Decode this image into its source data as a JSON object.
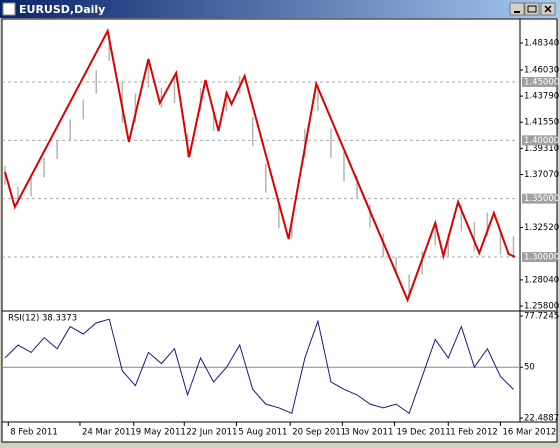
{
  "window": {
    "title": "EURUSD,Daily"
  },
  "chart_data": [
    {
      "type": "line",
      "x": [
        0,
        6,
        63,
        76,
        88,
        95,
        105,
        113,
        123,
        131,
        136,
        139,
        147,
        174,
        191,
        247,
        264,
        269,
        278,
        291,
        300,
        309,
        313
      ],
      "values": [
        1.3729,
        1.3429,
        1.4937,
        1.3986,
        1.4697,
        1.432,
        1.4577,
        1.3857,
        1.4517,
        1.408,
        1.4406,
        1.4311,
        1.4551,
        1.3154,
        1.4483,
        1.2632,
        1.3292,
        1.3009,
        1.3472,
        1.3034,
        1.3377,
        1.3026,
        1.3
      ],
      "color": "#dd0000",
      "bars": {
        "color": "#b4b4b4",
        "x": [
          0,
          8,
          16,
          24,
          32,
          40,
          48,
          56,
          64,
          72,
          80,
          88,
          96,
          104,
          112,
          120,
          128,
          136,
          144,
          152,
          160,
          168,
          176,
          184,
          192,
          200,
          208,
          216,
          224,
          232,
          240,
          248,
          256,
          264,
          272,
          280,
          288,
          296,
          304,
          312
        ],
        "high": [
          1.378,
          1.36,
          1.368,
          1.385,
          1.4,
          1.418,
          1.435,
          1.46,
          1.49,
          1.45,
          1.44,
          1.468,
          1.445,
          1.455,
          1.405,
          1.445,
          1.425,
          1.442,
          1.455,
          1.42,
          1.38,
          1.345,
          1.33,
          1.41,
          1.448,
          1.41,
          1.39,
          1.37,
          1.345,
          1.32,
          1.3,
          1.285,
          1.305,
          1.33,
          1.32,
          1.345,
          1.33,
          1.338,
          1.322,
          1.318
        ],
        "low": [
          1.362,
          1.345,
          1.352,
          1.368,
          1.384,
          1.4,
          1.418,
          1.44,
          1.468,
          1.415,
          1.415,
          1.445,
          1.428,
          1.432,
          1.385,
          1.425,
          1.408,
          1.425,
          1.44,
          1.395,
          1.355,
          1.325,
          1.316,
          1.385,
          1.425,
          1.385,
          1.365,
          1.35,
          1.325,
          1.3,
          1.285,
          1.265,
          1.285,
          1.31,
          1.3,
          1.322,
          1.305,
          1.318,
          1.302,
          1.3
        ]
      },
      "xlim": [
        0,
        316
      ],
      "ylim": [
        1.2546,
        1.5031
      ],
      "yticks": [
        {
          "value": 1.4834,
          "label": "1.48340"
        },
        {
          "value": 1.4603,
          "label": "1.46030"
        },
        {
          "value": 1.4379,
          "label": "1.43790"
        },
        {
          "value": 1.4155,
          "label": "1.41550"
        },
        {
          "value": 1.3931,
          "label": "1.39310"
        },
        {
          "value": 1.3707,
          "label": "1.37070"
        },
        {
          "value": 1.3252,
          "label": "1.32520"
        },
        {
          "value": 1.2804,
          "label": "1.28040"
        },
        {
          "value": 1.258,
          "label": "1.25800"
        }
      ],
      "levels": [
        {
          "value": 1.45,
          "label": "1.45000"
        },
        {
          "value": 1.4,
          "label": "1.40000"
        },
        {
          "value": 1.35,
          "label": "1.35000"
        },
        {
          "value": 1.3,
          "label": "1.30000"
        }
      ]
    },
    {
      "type": "line",
      "title": "RSI(12) 38.3373",
      "x": [
        0,
        8,
        16,
        24,
        32,
        40,
        48,
        56,
        64,
        72,
        80,
        88,
        96,
        104,
        112,
        120,
        128,
        136,
        144,
        152,
        160,
        168,
        176,
        184,
        192,
        200,
        208,
        216,
        224,
        232,
        240,
        248,
        256,
        264,
        272,
        280,
        288,
        296,
        304,
        312
      ],
      "values": [
        55,
        62,
        58,
        66,
        60,
        72,
        68,
        74,
        76,
        48,
        40,
        58,
        52,
        60,
        35,
        55,
        42,
        50,
        62,
        38,
        30,
        28,
        25,
        55,
        75,
        42,
        38,
        35,
        30,
        28,
        30,
        25,
        45,
        65,
        55,
        72,
        50,
        60,
        45,
        38
      ],
      "color": "#1a1a80",
      "xlim": [
        0,
        316
      ],
      "ylim": [
        22.4887,
        77.7245
      ],
      "yticks": [
        77.7245,
        50,
        22.4887
      ],
      "xticks": [
        {
          "value": 2,
          "label": "8 Feb 2011"
        },
        {
          "value": 46,
          "label": "24 Mar 2011"
        },
        {
          "value": 79,
          "label": "9 May 2011"
        },
        {
          "value": 110,
          "label": "22 Jun 2011"
        },
        {
          "value": 142,
          "label": "5 Aug 2011"
        },
        {
          "value": 175,
          "label": "20 Sep 2011"
        },
        {
          "value": 207,
          "label": "3 Nov 2011"
        },
        {
          "value": 239,
          "label": "19 Dec 2011"
        },
        {
          "value": 272,
          "label": "1 Feb 2012"
        },
        {
          "value": 304,
          "label": "16 Mar 2012"
        }
      ]
    }
  ]
}
